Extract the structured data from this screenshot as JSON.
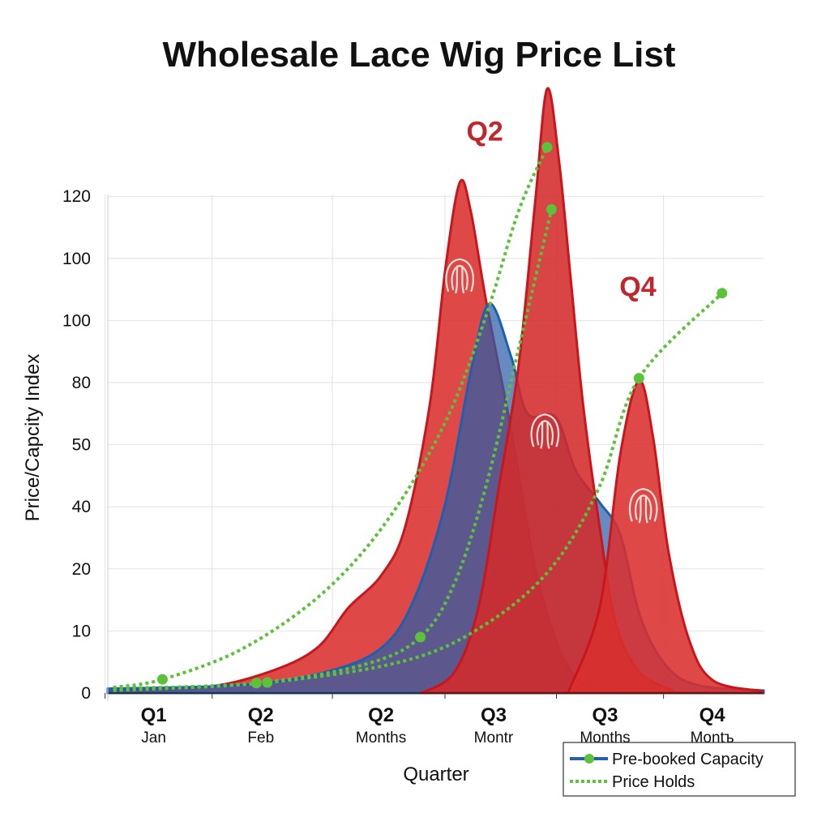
{
  "chart_data": {
    "type": "area",
    "title": "Wholesale Lace Wig Price List",
    "xlabel": "Quarter",
    "ylabel": "Price/Capcity Index",
    "xlim": [
      0,
      6
    ],
    "y_tick_labels": [
      "0",
      "10",
      "20",
      "40",
      "50",
      "80",
      "100",
      "100",
      "120"
    ],
    "y_note": "y values expressed in tick-index units (0 = first tick label, 8 = last tick label)",
    "ylim": [
      0,
      8
    ],
    "grid": true,
    "x_ticks": [
      {
        "x": 0.42,
        "quarter": "Q1",
        "sub": "Jan"
      },
      {
        "x": 1.4,
        "quarter": "Q2",
        "sub": "Feb"
      },
      {
        "x": 2.5,
        "quarter": "Q2",
        "sub": "Months"
      },
      {
        "x": 3.53,
        "quarter": "Q3",
        "sub": "Montr"
      },
      {
        "x": 4.55,
        "quarter": "Q3",
        "sub": "Months"
      },
      {
        "x": 5.53,
        "quarter": "Q4",
        "sub": "Montъ"
      }
    ],
    "annotations": [
      {
        "text": "Q2",
        "x": 3.45,
        "y": 8.9
      },
      {
        "text": "Q4",
        "x": 4.85,
        "y": 6.4
      }
    ],
    "areas": [
      {
        "name": "red-peak-1",
        "color": "#d9302f",
        "points": [
          [
            0,
            0.04
          ],
          [
            0.87,
            0.09
          ],
          [
            1.46,
            0.33
          ],
          [
            1.91,
            0.72
          ],
          [
            2.2,
            1.37
          ],
          [
            2.5,
            1.89
          ],
          [
            2.72,
            2.67
          ],
          [
            2.945,
            4.63
          ],
          [
            3.09,
            6.85
          ],
          [
            3.22,
            8.22
          ],
          [
            3.32,
            7.77
          ],
          [
            3.46,
            6.33
          ],
          [
            3.69,
            4.24
          ],
          [
            3.91,
            2.02
          ],
          [
            4.13,
            0.72
          ],
          [
            4.35,
            0.13
          ],
          [
            4.65,
            0
          ]
        ]
      },
      {
        "name": "blue-capacity-area",
        "color": "#2a5ea8",
        "points": [
          [
            0,
            0.07
          ],
          [
            1.24,
            0.13
          ],
          [
            1.98,
            0.33
          ],
          [
            2.5,
            0.72
          ],
          [
            2.8,
            1.5
          ],
          [
            3.09,
            3.07
          ],
          [
            3.32,
            5.16
          ],
          [
            3.49,
            6.27
          ],
          [
            3.69,
            5.42
          ],
          [
            3.84,
            4.5
          ],
          [
            4.1,
            4.44
          ],
          [
            4.28,
            3.59
          ],
          [
            4.5,
            3.07
          ],
          [
            4.69,
            2.55
          ],
          [
            4.87,
            1.24
          ],
          [
            5.1,
            0.46
          ],
          [
            5.39,
            0.13
          ],
          [
            6.0,
            0.04
          ]
        ]
      },
      {
        "name": "red-peak-2",
        "color": "#d42a2a",
        "points": [
          [
            2.87,
            0
          ],
          [
            3.17,
            0.33
          ],
          [
            3.39,
            1.37
          ],
          [
            3.58,
            3.33
          ],
          [
            3.76,
            5.29
          ],
          [
            3.91,
            7.9
          ],
          [
            4.02,
            9.73
          ],
          [
            4.13,
            8.55
          ],
          [
            4.24,
            6.59
          ],
          [
            4.35,
            4.63
          ],
          [
            4.5,
            2.68
          ],
          [
            4.65,
            1.11
          ],
          [
            4.87,
            0.33
          ],
          [
            5.17,
            0.04
          ]
        ]
      },
      {
        "name": "red-peak-3",
        "color": "#d9302f",
        "points": [
          [
            4.21,
            0
          ],
          [
            4.5,
            1.37
          ],
          [
            4.69,
            3.85
          ],
          [
            4.86,
            5.03
          ],
          [
            4.99,
            4.11
          ],
          [
            5.13,
            2.28
          ],
          [
            5.32,
            0.85
          ],
          [
            5.54,
            0.2
          ],
          [
            5.99,
            0.03
          ]
        ]
      }
    ],
    "series": [
      {
        "name": "Price Holds A",
        "color": "#5cc23a",
        "markers": [
          1,
          8
        ],
        "points": [
          [
            0.05,
            0.09
          ],
          [
            0.5,
            0.22
          ],
          [
            1.24,
            0.72
          ],
          [
            1.98,
            1.63
          ],
          [
            2.57,
            2.81
          ],
          [
            3.09,
            4.37
          ],
          [
            3.46,
            6.07
          ],
          [
            3.76,
            7.77
          ],
          [
            4.02,
            8.79
          ]
        ]
      },
      {
        "name": "Price Holds B",
        "color": "#5cc23a",
        "markers": [
          1,
          3,
          7
        ],
        "points": [
          [
            0.05,
            0.07
          ],
          [
            1.36,
            0.16
          ],
          [
            2.35,
            0.46
          ],
          [
            2.86,
            0.9
          ],
          [
            3.17,
            1.76
          ],
          [
            3.46,
            3.33
          ],
          [
            3.76,
            5.55
          ],
          [
            4.06,
            7.79
          ]
        ]
      },
      {
        "name": "Price Holds C",
        "color": "#5cc23a",
        "markers": [
          1,
          6,
          7
        ],
        "points": [
          [
            0.05,
            0.04
          ],
          [
            1.46,
            0.17
          ],
          [
            2.72,
            0.52
          ],
          [
            3.46,
            1.11
          ],
          [
            4.06,
            2.02
          ],
          [
            4.5,
            3.33
          ],
          [
            4.86,
            5.07
          ],
          [
            5.62,
            6.44
          ]
        ]
      }
    ],
    "wig_icons": [
      [
        3.22,
        6.7
      ],
      [
        4.0,
        4.2
      ],
      [
        4.9,
        3.0
      ]
    ],
    "legend": {
      "placement": "bottom-right",
      "entries": [
        {
          "label": "Pre-booked Capacity",
          "style": "line-marker",
          "color": "#2a5ea8",
          "marker_color": "#5cc23a"
        },
        {
          "label": "Price Holds",
          "style": "dotted",
          "color": "#5cc23a"
        }
      ]
    }
  }
}
